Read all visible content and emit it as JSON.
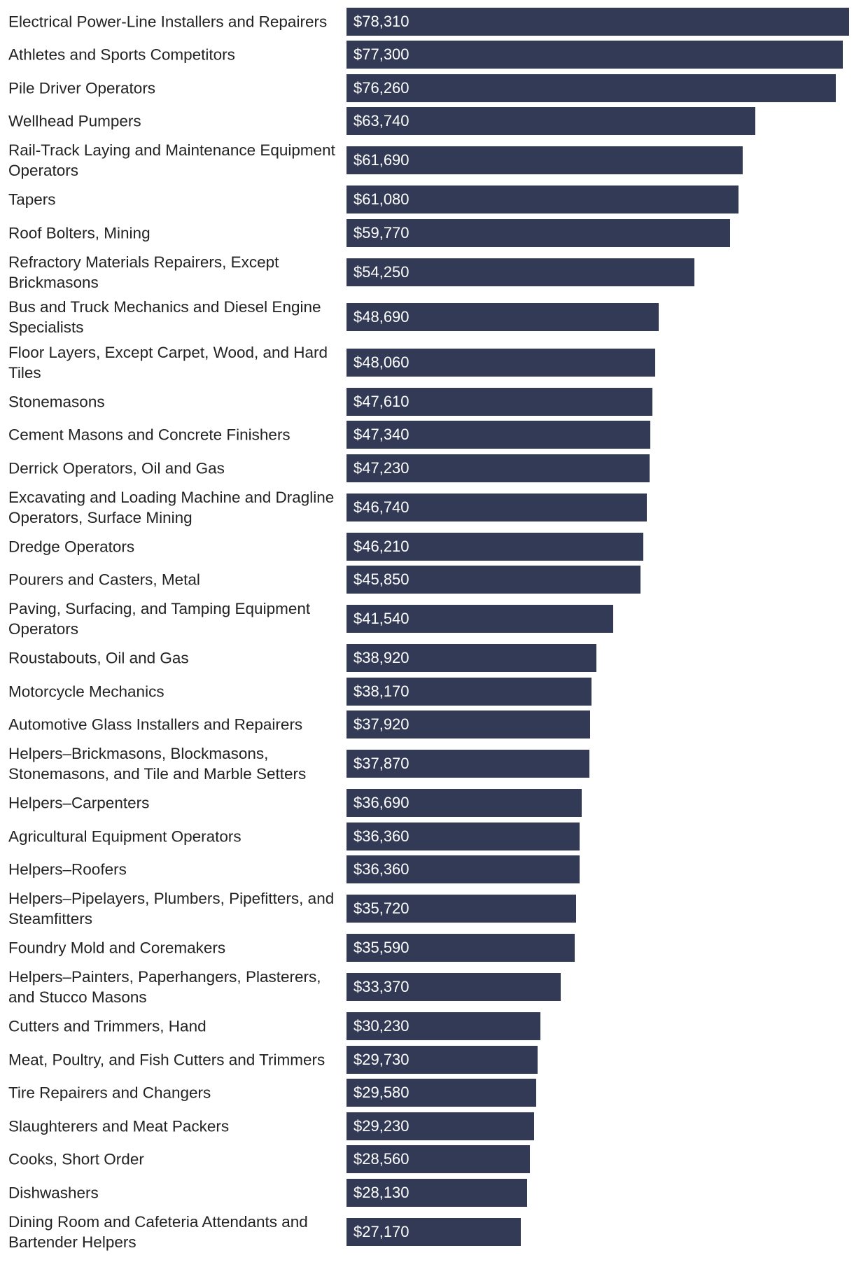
{
  "colors": {
    "bar": "#323a56",
    "label_text": "#222222",
    "value_text": "#ffffff",
    "background": "#ffffff"
  },
  "chart_data": {
    "type": "bar",
    "orientation": "horizontal",
    "title": "",
    "xlabel": "",
    "ylabel": "",
    "xlim": [
      0,
      78310
    ],
    "grid": false,
    "value_prefix": "$",
    "categories": [
      "Electrical Power-Line Installers and Repairers",
      "Athletes and Sports Competitors",
      "Pile Driver Operators",
      "Wellhead Pumpers",
      "Rail-Track Laying and Maintenance Equipment Operators",
      "Tapers",
      "Roof Bolters, Mining",
      "Refractory Materials Repairers, Except Brickmasons",
      "Bus and Truck Mechanics and Diesel Engine Specialists",
      "Floor Layers, Except Carpet, Wood, and Hard Tiles",
      "Stonemasons",
      "Cement Masons and Concrete Finishers",
      "Derrick Operators, Oil and Gas",
      "Excavating and Loading Machine and Dragline Operators, Surface Mining",
      "Dredge Operators",
      "Pourers and Casters, Metal",
      "Paving, Surfacing, and Tamping Equipment Operators",
      "Roustabouts, Oil and Gas",
      "Motorcycle Mechanics",
      "Automotive Glass Installers and Repairers",
      "Helpers–Brickmasons, Blockmasons, Stonemasons, and Tile and Marble Setters",
      "Helpers–Carpenters",
      "Agricultural Equipment Operators",
      "Helpers–Roofers",
      "Helpers–Pipelayers, Plumbers, Pipefitters, and Steamfitters",
      "Foundry Mold and Coremakers",
      "Helpers–Painters, Paperhangers, Plasterers, and Stucco Masons",
      "Cutters and Trimmers, Hand",
      "Meat, Poultry, and Fish Cutters and Trimmers",
      "Tire Repairers and Changers",
      "Slaughterers and Meat Packers",
      "Cooks, Short Order",
      "Dishwashers",
      "Dining Room and Cafeteria Attendants and Bartender Helpers"
    ],
    "values": [
      78310,
      77300,
      76260,
      63740,
      61690,
      61080,
      59770,
      54250,
      48690,
      48060,
      47610,
      47340,
      47230,
      46740,
      46210,
      45850,
      41540,
      38920,
      38170,
      37920,
      37870,
      36690,
      36360,
      36360,
      35720,
      35590,
      33370,
      30230,
      29730,
      29580,
      29230,
      28560,
      28130,
      27170
    ],
    "value_labels": [
      "$78,310",
      "$77,300",
      "$76,260",
      "$63,740",
      "$61,690",
      "$61,080",
      "$59,770",
      "$54,250",
      "$48,690",
      "$48,060",
      "$47,610",
      "$47,340",
      "$47,230",
      "$46,740",
      "$46,210",
      "$45,850",
      "$41,540",
      "$38,920",
      "$38,170",
      "$37,920",
      "$37,870",
      "$36,690",
      "$36,360",
      "$36,360",
      "$35,720",
      "$35,590",
      "$33,370",
      "$30,230",
      "$29,730",
      "$29,580",
      "$29,230",
      "$28,560",
      "$28,130",
      "$27,170"
    ]
  }
}
